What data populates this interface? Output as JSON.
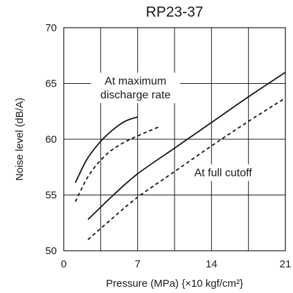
{
  "chart_data": {
    "type": "line",
    "title": "RP23-37",
    "xlabel": "Pressure (MPa) {×10 kgf/cm²}",
    "ylabel": "Noise level (dB/A)",
    "xlim": [
      0,
      21
    ],
    "ylim": [
      50,
      70
    ],
    "xticks": [
      0,
      7,
      14,
      21
    ],
    "yticks": [
      50,
      55,
      60,
      65,
      70
    ],
    "grid": true,
    "grid_x": [
      0,
      3.5,
      7,
      10.5,
      14,
      17.5,
      21
    ],
    "grid_y": [
      50,
      55,
      60,
      65,
      70
    ],
    "series": [
      {
        "style": "solid",
        "x": [
          1.1,
          2.2,
          3.4,
          4.6,
          5.8,
          7.0
        ],
        "y": [
          56.1,
          58.2,
          59.7,
          60.8,
          61.6,
          62.0
        ]
      },
      {
        "style": "dashed",
        "x": [
          1.1,
          2.4,
          4.0,
          5.5,
          7.0,
          9.0
        ],
        "y": [
          54.4,
          56.8,
          58.6,
          59.6,
          60.3,
          61.1
        ]
      },
      {
        "style": "solid",
        "x": [
          2.3,
          4.6,
          7.0,
          10.5,
          14.0,
          17.5,
          21.0
        ],
        "y": [
          52.8,
          54.9,
          56.9,
          59.2,
          61.5,
          63.8,
          66.0
        ]
      },
      {
        "style": "dashed",
        "x": [
          2.3,
          4.6,
          7.0,
          10.5,
          14.0,
          17.5,
          21.0
        ],
        "y": [
          51.0,
          52.9,
          54.8,
          57.1,
          59.4,
          61.6,
          63.7
        ]
      }
    ],
    "annotations": [
      {
        "text_lines": [
          "At maximum",
          "discharge rate"
        ],
        "x": 6.8,
        "y": 64.6
      },
      {
        "text_lines": [
          "At full cutoff"
        ],
        "x": 15.1,
        "y": 57.0
      }
    ]
  }
}
